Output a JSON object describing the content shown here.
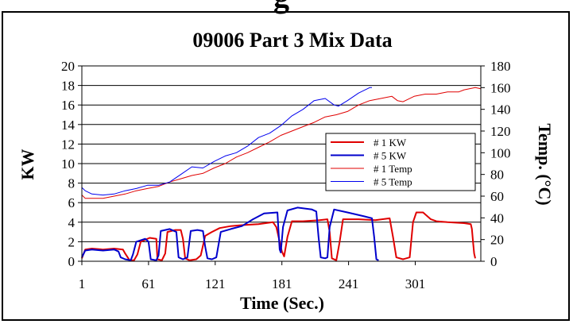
{
  "header_fragment": "g",
  "chart_data": {
    "type": "line",
    "title": "09006 Part 3 Mix Data",
    "xlabel": "Time (Sec.)",
    "ylabel": "KW",
    "y2label": "Temp. (°C)",
    "xlim": [
      1,
      360
    ],
    "ylim": [
      0,
      20
    ],
    "y2lim": [
      0,
      180
    ],
    "x_ticks": [
      1,
      61,
      121,
      181,
      241,
      301
    ],
    "y_ticks": [
      0,
      2,
      4,
      6,
      8,
      10,
      12,
      14,
      16,
      18,
      20
    ],
    "y2_ticks": [
      0,
      20,
      40,
      60,
      80,
      100,
      120,
      140,
      160,
      180
    ],
    "grid": "horizontal",
    "legend_position": "right",
    "series": [
      {
        "name": "# 1 KW",
        "axis": "left",
        "color": "#e00000",
        "width": 2,
        "points": [
          [
            1,
            0.3
          ],
          [
            4,
            1.2
          ],
          [
            10,
            1.3
          ],
          [
            20,
            1.2
          ],
          [
            30,
            1.3
          ],
          [
            38,
            1.2
          ],
          [
            40,
            0.8
          ],
          [
            44,
            0.1
          ],
          [
            48,
            0.1
          ],
          [
            51,
            0.7
          ],
          [
            54,
            2.0
          ],
          [
            62,
            2.4
          ],
          [
            68,
            2.3
          ],
          [
            69,
            0.2
          ],
          [
            73,
            0.1
          ],
          [
            76,
            0.8
          ],
          [
            78,
            3.0
          ],
          [
            85,
            3.2
          ],
          [
            90,
            3.2
          ],
          [
            92,
            2.3
          ],
          [
            94,
            0.3
          ],
          [
            98,
            0.1
          ],
          [
            104,
            0.2
          ],
          [
            108,
            0.6
          ],
          [
            112,
            2.6
          ],
          [
            118,
            3.0
          ],
          [
            125,
            3.4
          ],
          [
            135,
            3.6
          ],
          [
            145,
            3.7
          ],
          [
            160,
            3.8
          ],
          [
            173,
            4.0
          ],
          [
            176,
            3.5
          ],
          [
            178,
            2.5
          ],
          [
            181,
            1.0
          ],
          [
            183,
            0.5
          ],
          [
            186,
            2.5
          ],
          [
            190,
            4.1
          ],
          [
            200,
            4.1
          ],
          [
            215,
            4.2
          ],
          [
            222,
            4.3
          ],
          [
            224,
            3.0
          ],
          [
            226,
            0.3
          ],
          [
            230,
            0.1
          ],
          [
            233,
            2.0
          ],
          [
            236,
            4.3
          ],
          [
            250,
            4.3
          ],
          [
            265,
            4.2
          ],
          [
            278,
            4.4
          ],
          [
            281,
            2.5
          ],
          [
            284,
            0.4
          ],
          [
            290,
            0.2
          ],
          [
            296,
            0.4
          ],
          [
            299,
            4.0
          ],
          [
            302,
            5.0
          ],
          [
            308,
            5.0
          ],
          [
            315,
            4.3
          ],
          [
            320,
            4.1
          ],
          [
            330,
            4.0
          ],
          [
            345,
            3.9
          ],
          [
            351,
            3.8
          ],
          [
            352,
            3.3
          ],
          [
            353,
            2.0
          ],
          [
            354,
            0.8
          ],
          [
            355,
            0.3
          ]
        ]
      },
      {
        "name": "# 5 KW",
        "axis": "left",
        "color": "#0000cc",
        "width": 2,
        "points": [
          [
            1,
            0.4
          ],
          [
            4,
            1.1
          ],
          [
            10,
            1.2
          ],
          [
            20,
            1.1
          ],
          [
            30,
            1.2
          ],
          [
            34,
            1.0
          ],
          [
            36,
            0.4
          ],
          [
            40,
            0.2
          ],
          [
            45,
            0.1
          ],
          [
            47,
            0.7
          ],
          [
            50,
            2.0
          ],
          [
            58,
            2.3
          ],
          [
            61,
            2.0
          ],
          [
            63,
            0.2
          ],
          [
            68,
            0.1
          ],
          [
            70,
            0.6
          ],
          [
            72,
            3.1
          ],
          [
            80,
            3.3
          ],
          [
            86,
            3.0
          ],
          [
            88,
            0.4
          ],
          [
            92,
            0.2
          ],
          [
            96,
            0.4
          ],
          [
            99,
            3.1
          ],
          [
            105,
            3.2
          ],
          [
            110,
            3.1
          ],
          [
            112,
            1.5
          ],
          [
            114,
            0.3
          ],
          [
            118,
            0.2
          ],
          [
            122,
            0.4
          ],
          [
            126,
            3.0
          ],
          [
            135,
            3.3
          ],
          [
            145,
            3.6
          ],
          [
            155,
            4.3
          ],
          [
            165,
            4.9
          ],
          [
            177,
            5.0
          ],
          [
            178,
            3.0
          ],
          [
            179,
            1.2
          ],
          [
            180,
            0.9
          ],
          [
            182,
            3.5
          ],
          [
            186,
            5.2
          ],
          [
            195,
            5.5
          ],
          [
            208,
            5.3
          ],
          [
            212,
            5.1
          ],
          [
            214,
            2.5
          ],
          [
            216,
            0.4
          ],
          [
            220,
            0.3
          ],
          [
            222,
            0.4
          ],
          [
            224,
            3.5
          ],
          [
            228,
            5.3
          ],
          [
            240,
            5.0
          ],
          [
            255,
            4.6
          ],
          [
            262,
            4.4
          ],
          [
            264,
            2.5
          ],
          [
            266,
            0.2
          ],
          [
            268,
            0.1
          ]
        ]
      },
      {
        "name": "# 1 Temp",
        "axis": "right",
        "color": "#e00000",
        "width": 1,
        "points": [
          [
            1,
            61
          ],
          [
            4,
            58
          ],
          [
            10,
            58
          ],
          [
            20,
            58
          ],
          [
            30,
            60
          ],
          [
            40,
            62
          ],
          [
            50,
            65
          ],
          [
            60,
            67
          ],
          [
            70,
            69
          ],
          [
            80,
            73
          ],
          [
            90,
            76
          ],
          [
            100,
            79
          ],
          [
            110,
            81
          ],
          [
            120,
            86
          ],
          [
            130,
            90
          ],
          [
            140,
            96
          ],
          [
            150,
            100
          ],
          [
            160,
            105
          ],
          [
            170,
            110
          ],
          [
            180,
            116
          ],
          [
            190,
            120
          ],
          [
            200,
            124
          ],
          [
            210,
            128
          ],
          [
            220,
            133
          ],
          [
            230,
            135
          ],
          [
            240,
            138
          ],
          [
            250,
            144
          ],
          [
            260,
            148
          ],
          [
            270,
            150
          ],
          [
            280,
            152
          ],
          [
            285,
            148
          ],
          [
            290,
            147
          ],
          [
            300,
            152
          ],
          [
            310,
            154
          ],
          [
            320,
            154
          ],
          [
            330,
            156
          ],
          [
            340,
            156
          ],
          [
            345,
            158
          ],
          [
            355,
            160
          ],
          [
            360,
            159
          ]
        ]
      },
      {
        "name": "# 5 Temp",
        "axis": "right",
        "color": "#0000ee",
        "width": 1,
        "points": [
          [
            1,
            68
          ],
          [
            4,
            65
          ],
          [
            10,
            62
          ],
          [
            20,
            61
          ],
          [
            30,
            62
          ],
          [
            40,
            65
          ],
          [
            50,
            67
          ],
          [
            60,
            70
          ],
          [
            70,
            70
          ],
          [
            80,
            73
          ],
          [
            90,
            80
          ],
          [
            100,
            87
          ],
          [
            110,
            86
          ],
          [
            120,
            92
          ],
          [
            130,
            97
          ],
          [
            140,
            100
          ],
          [
            150,
            106
          ],
          [
            160,
            114
          ],
          [
            170,
            118
          ],
          [
            180,
            125
          ],
          [
            190,
            134
          ],
          [
            200,
            140
          ],
          [
            210,
            148
          ],
          [
            220,
            150
          ],
          [
            228,
            144
          ],
          [
            232,
            143
          ],
          [
            240,
            148
          ],
          [
            250,
            155
          ],
          [
            260,
            160
          ],
          [
            262,
            160
          ]
        ]
      }
    ]
  }
}
